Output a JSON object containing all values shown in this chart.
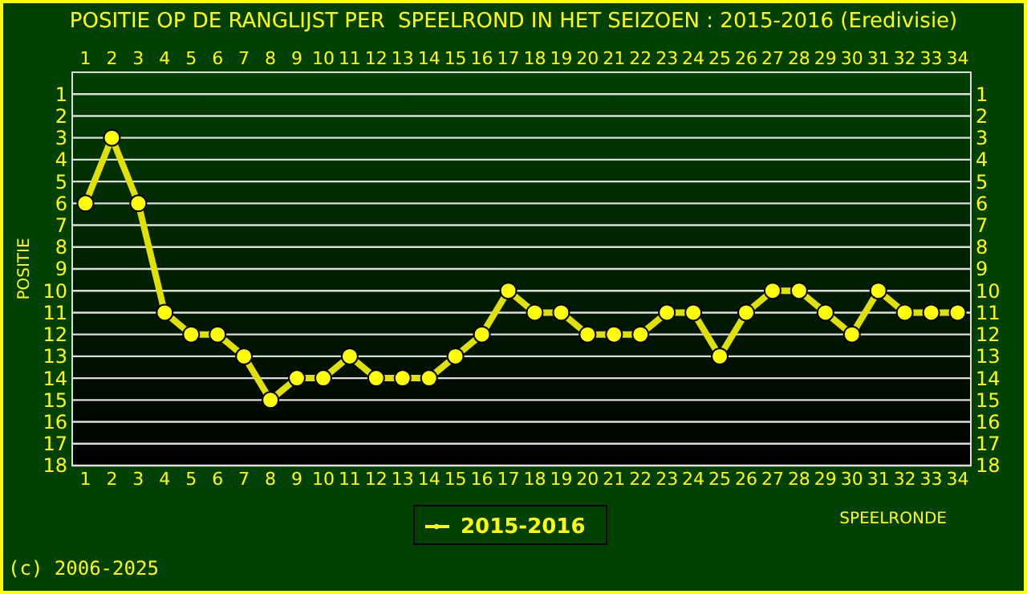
{
  "chart_data": {
    "type": "line",
    "title": "POSITIE OP DE RANGLIJST PER  SPEELROND IN HET SEIZOEN : 2015-2016 (Eredivisie)",
    "xlabel": "SPEELRONDE",
    "ylabel": "POSITIE",
    "categories": [
      "1",
      "2",
      "3",
      "4",
      "5",
      "6",
      "7",
      "8",
      "9",
      "10",
      "11",
      "12",
      "13",
      "14",
      "15",
      "16",
      "17",
      "18",
      "19",
      "20",
      "21",
      "22",
      "23",
      "24",
      "25",
      "26",
      "27",
      "28",
      "29",
      "30",
      "31",
      "32",
      "33",
      "34"
    ],
    "series": [
      {
        "name": "2015-2016",
        "color": "#ffff00",
        "values": [
          6,
          3,
          6,
          11,
          12,
          12,
          13,
          15,
          14,
          14,
          13,
          14,
          14,
          14,
          13,
          12,
          10,
          11,
          11,
          12,
          12,
          12,
          11,
          11,
          13,
          11,
          10,
          10,
          11,
          12,
          10,
          11,
          11,
          11
        ]
      }
    ],
    "ylim": [
      18,
      0
    ],
    "yticks": [
      1,
      2,
      3,
      4,
      5,
      6,
      7,
      8,
      9,
      10,
      11,
      12,
      13,
      14,
      15,
      16,
      17,
      18
    ],
    "y2lim": [
      18,
      0
    ],
    "y2ticks": [
      1,
      2,
      3,
      4,
      5,
      6,
      7,
      8,
      9,
      10,
      11,
      12,
      13,
      14,
      15,
      16,
      17,
      18
    ],
    "grid": "y",
    "legend": "bottom",
    "marker": "circle",
    "line_style": "solid",
    "annotations": [
      "(c) 2006-2025"
    ]
  }
}
